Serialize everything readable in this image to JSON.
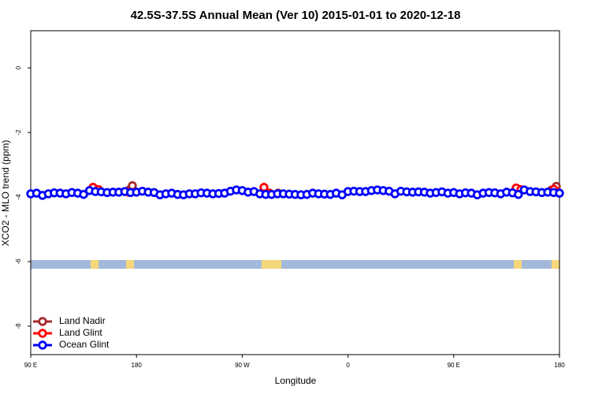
{
  "chart_data": {
    "type": "scatter",
    "title": "42.5S-37.5S Annual Mean (Ver 10)   2015-01-01 to 2020-12-18",
    "x_label": "Longitude",
    "y_label": "XCO2 - MLO trend (ppm)",
    "xlim": [
      90,
      540
    ],
    "ylim": [
      -8.88,
      1.15
    ],
    "xticks": [
      {
        "value": 90,
        "label": "90 E"
      },
      180,
      {
        "value": 270,
        "label": "90 W"
      },
      {
        "value": 360,
        "label": "0"
      },
      {
        "value": 450,
        "label": "90 E"
      },
      {
        "value": 540,
        "label": "180"
      }
    ],
    "yticks": [
      0,
      -2,
      -4,
      -6,
      -8
    ],
    "legend": "bottom-left",
    "series": [
      {
        "name": "Land Nadir",
        "color": "#a52a2a",
        "x": [
          143.6,
          173.8,
          176.5,
          293.9,
          300.6,
          504.4,
          533.3,
          537.3
        ],
        "values": [
          -3.72,
          -3.78,
          -3.65,
          -3.9,
          -3.88,
          -3.75,
          -3.78,
          -3.67
        ]
      },
      {
        "name": "Land Glint",
        "color": "#ff0000",
        "x": [
          143,
          147.7,
          173.2,
          288.5,
          293.3,
          503.1,
          507.1,
          535.2,
          539.9
        ],
        "values": [
          -3.7,
          -3.77,
          -3.85,
          -3.7,
          -3.88,
          -3.72,
          -3.77,
          -3.76,
          -3.88
        ]
      },
      {
        "name": "Ocean Glint",
        "color": "#0000ff",
        "x": [
          90,
          95,
          100,
          105,
          110,
          115,
          120,
          125,
          130,
          135,
          140,
          145,
          150,
          155,
          160,
          165,
          170,
          175,
          180,
          185,
          190,
          195,
          200,
          205,
          210,
          215,
          220,
          225,
          230,
          235,
          240,
          245,
          250,
          255,
          260,
          265,
          270,
          275,
          280,
          285,
          290,
          295,
          300,
          305,
          310,
          315,
          320,
          325,
          330,
          335,
          340,
          345,
          350,
          355,
          360,
          365,
          370,
          375,
          380,
          385,
          390,
          395,
          400,
          405,
          410,
          415,
          420,
          425,
          430,
          435,
          440,
          445,
          450,
          455,
          460,
          465,
          470,
          475,
          480,
          485,
          490,
          495,
          500,
          505,
          510,
          515,
          520,
          525,
          530,
          535,
          540
        ],
        "values": [
          -3.9,
          -3.88,
          -3.95,
          -3.9,
          -3.87,
          -3.88,
          -3.9,
          -3.86,
          -3.88,
          -3.92,
          -3.8,
          -3.83,
          -3.84,
          -3.86,
          -3.85,
          -3.85,
          -3.83,
          -3.86,
          -3.85,
          -3.82,
          -3.85,
          -3.86,
          -3.93,
          -3.9,
          -3.88,
          -3.92,
          -3.93,
          -3.9,
          -3.9,
          -3.87,
          -3.88,
          -3.9,
          -3.89,
          -3.88,
          -3.82,
          -3.78,
          -3.8,
          -3.85,
          -3.83,
          -3.9,
          -3.92,
          -3.92,
          -3.9,
          -3.9,
          -3.91,
          -3.92,
          -3.93,
          -3.92,
          -3.88,
          -3.9,
          -3.91,
          -3.92,
          -3.88,
          -3.93,
          -3.83,
          -3.82,
          -3.83,
          -3.83,
          -3.8,
          -3.78,
          -3.8,
          -3.82,
          -3.9,
          -3.82,
          -3.84,
          -3.85,
          -3.84,
          -3.85,
          -3.88,
          -3.86,
          -3.84,
          -3.88,
          -3.86,
          -3.9,
          -3.87,
          -3.88,
          -3.93,
          -3.88,
          -3.86,
          -3.87,
          -3.9,
          -3.85,
          -3.87,
          -3.92,
          -3.78,
          -3.83,
          -3.84,
          -3.86,
          -3.85,
          -3.86,
          -3.88
        ]
      }
    ]
  }
}
